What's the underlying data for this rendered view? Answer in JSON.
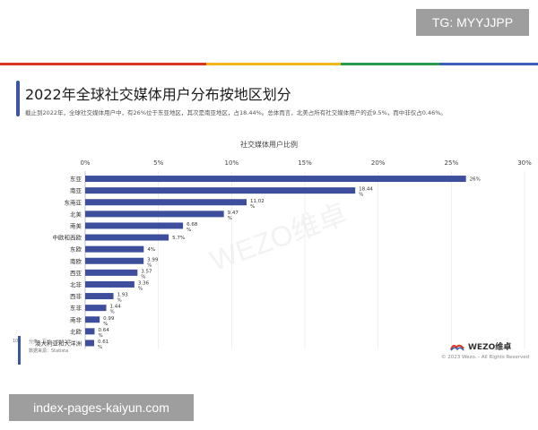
{
  "overlay": {
    "tg_badge": "TG: MYYJJPP",
    "url_badge": "index-pages-kaiyun.com"
  },
  "header": {
    "title": "2022年全球社交媒体用户分布按地区划分",
    "subtitle": "截止到2022年，全球社交媒体用户中，有26%位于东亚地区，其次是南亚地区，占18.44%。总体而言，北美占所有社交媒体用户的近9.5%，而中非仅占0.46%。"
  },
  "footer": {
    "number": "10",
    "source_line1": "分类：互动，2022年",
    "source_line2": "数据来源：Statista",
    "logo_text": "WEZO维卓",
    "copyright": "© 2023 Wezo. - All Rights Reserved"
  },
  "watermark": "WEZO维卓",
  "colors": {
    "bar": "#3d4f9c",
    "stripe": [
      "#d9341f",
      "#f2b61b",
      "#2a9a4e",
      "#3d5fb8"
    ]
  },
  "chart_data": {
    "type": "bar",
    "orientation": "horizontal",
    "title": "社交媒体用户比例",
    "x_ticks": [
      "0%",
      "5%",
      "10%",
      "15%",
      "20%",
      "25%",
      "30%"
    ],
    "xlim": [
      0,
      30
    ],
    "categories": [
      "东亚",
      "南亚",
      "东南亚",
      "北美",
      "南美",
      "中欧和西欧",
      "东欧",
      "南欧",
      "西亚",
      "北非",
      "西非",
      "东非",
      "南非",
      "北欧",
      "澳大利亚和大洋洲"
    ],
    "values": [
      26,
      18.44,
      11.02,
      9.47,
      6.68,
      5.7,
      4,
      3.99,
      3.57,
      3.36,
      1.93,
      1.44,
      0.99,
      0.64,
      0.61
    ],
    "value_labels": [
      "26%",
      "18.44 %",
      "11.02 %",
      "9.47 %",
      "6.68 %",
      "5.7%",
      "4%",
      "3.99 %",
      "3.57 %",
      "3.36 %",
      "1.93 %",
      "1.44 %",
      "0.99 %",
      "0.64 %",
      "0.61 %"
    ],
    "grid": true
  }
}
